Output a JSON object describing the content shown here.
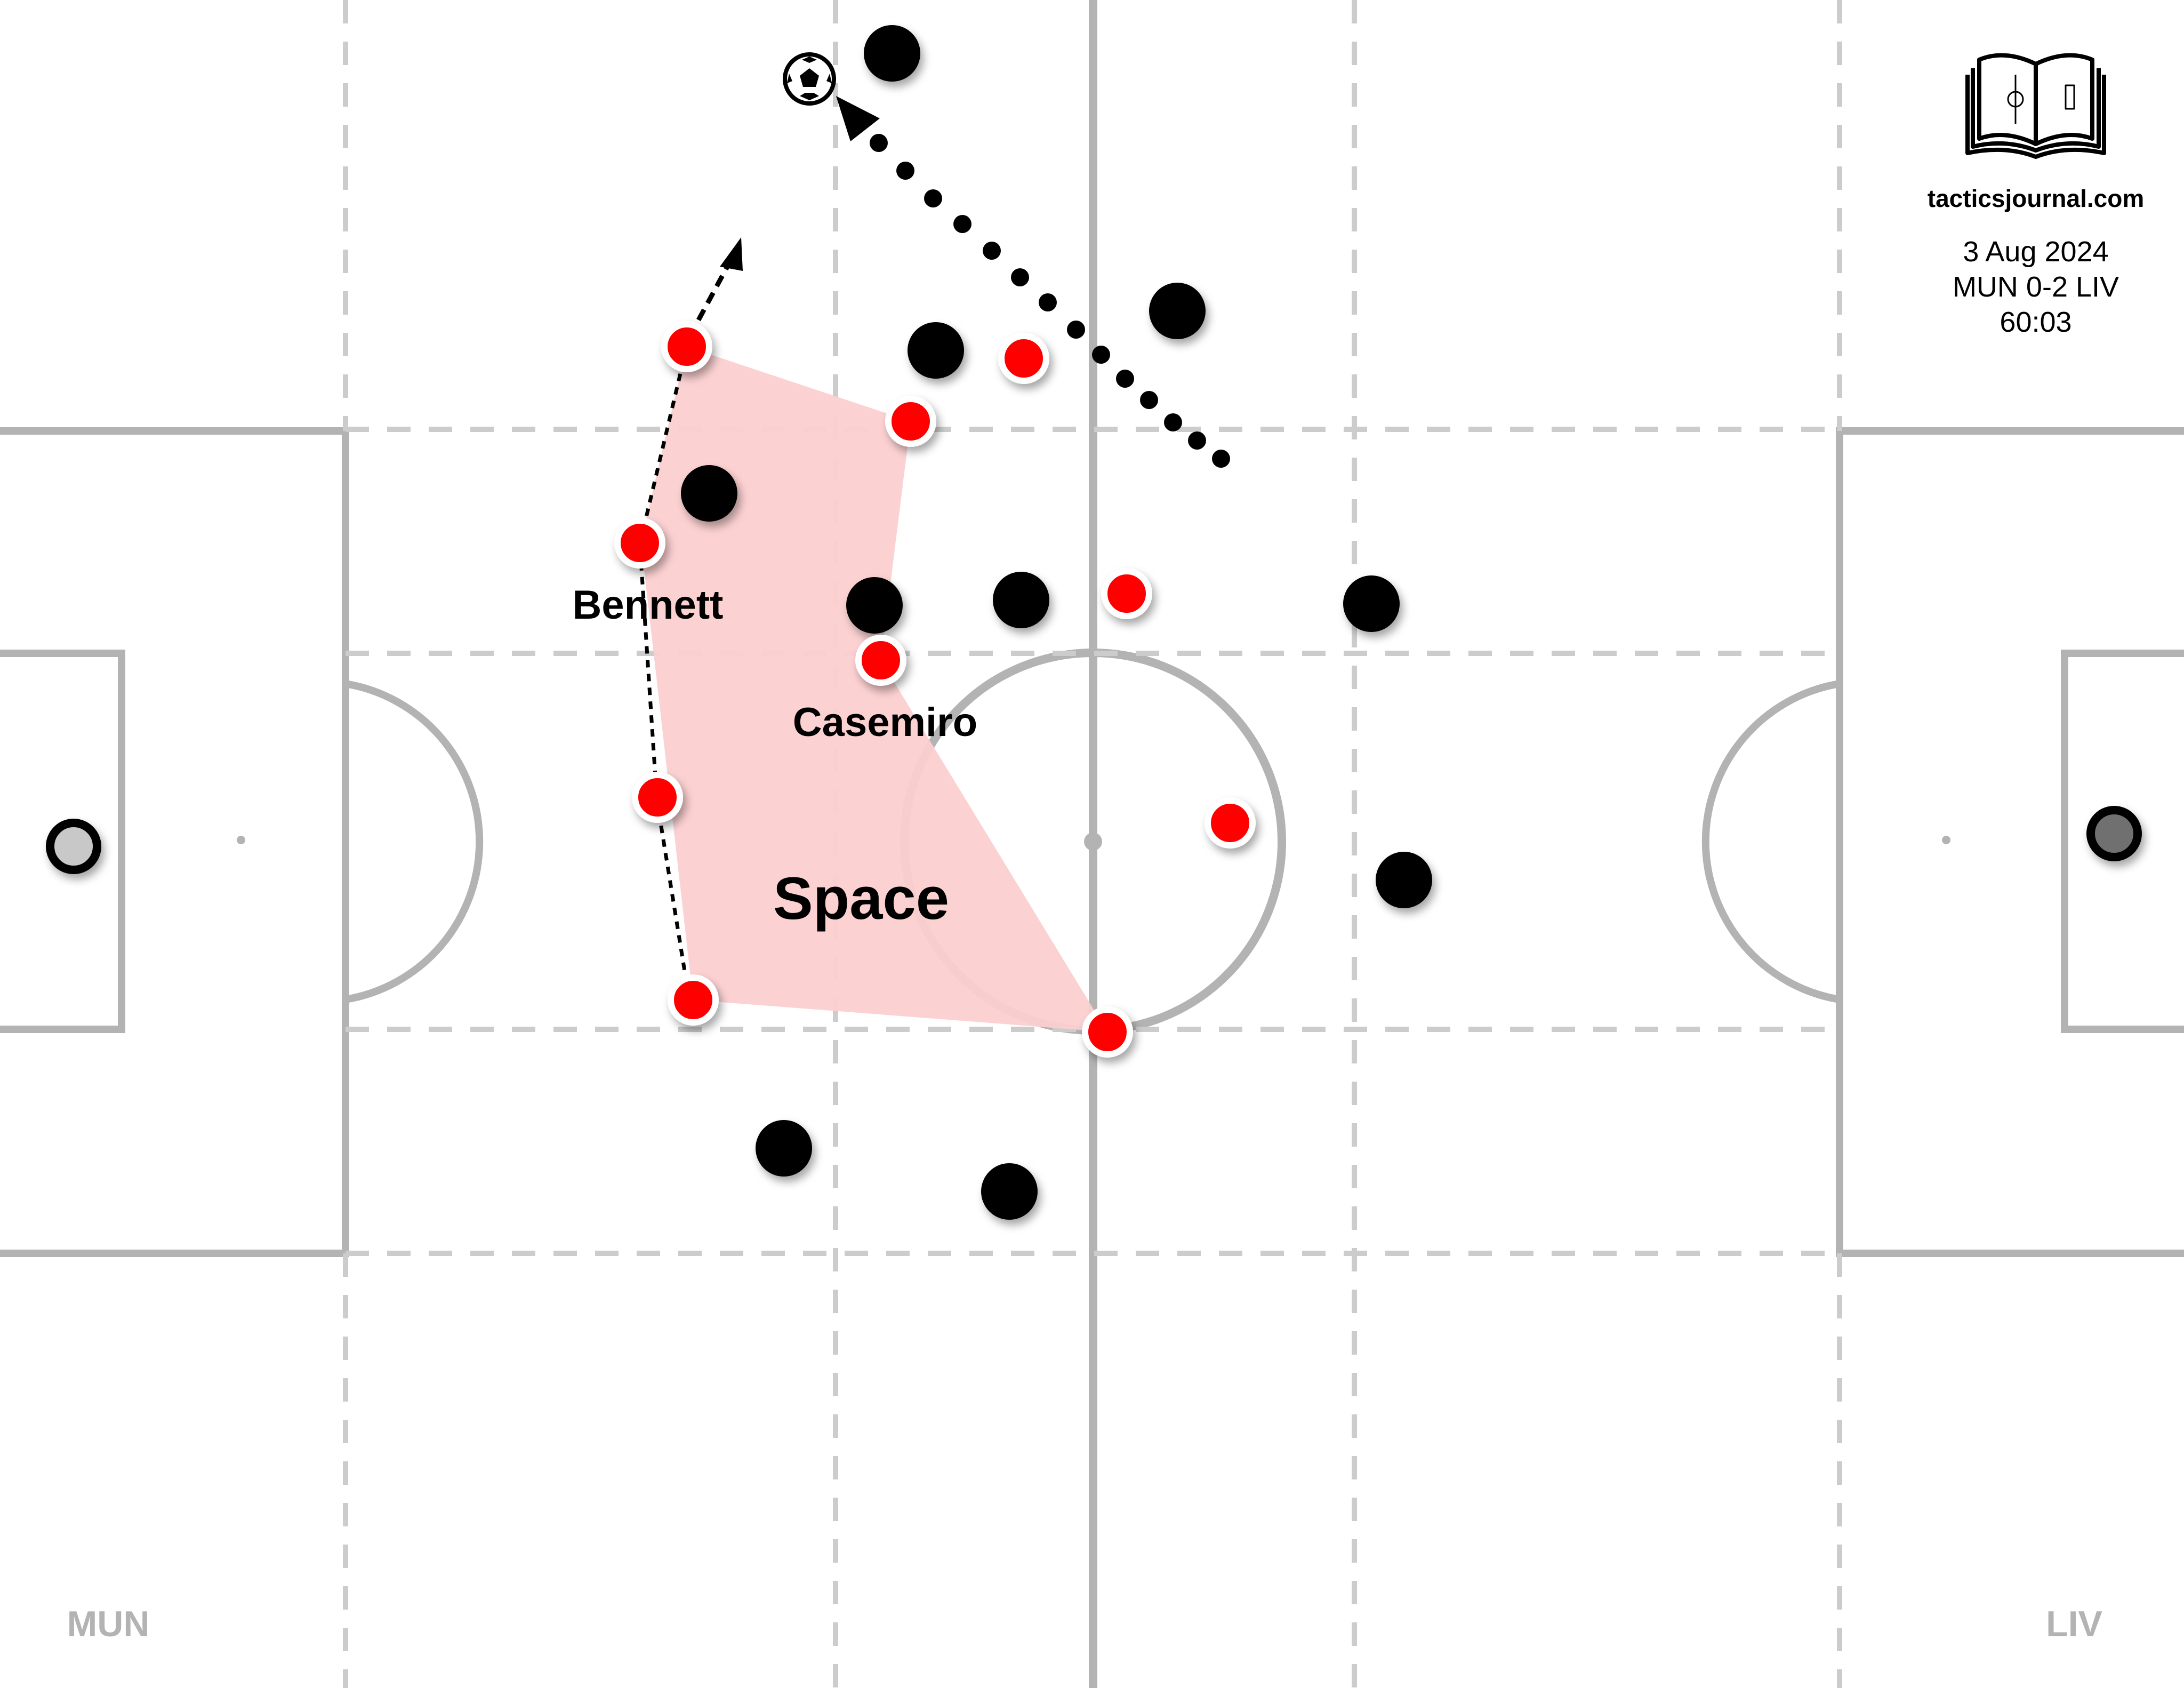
{
  "brand": {
    "site": "tacticsjournal.com",
    "logo_name": "open-book-pitch-logo"
  },
  "match": {
    "date": "3 Aug 2024",
    "score": "MUN 0-2 LIV",
    "time": "60:03"
  },
  "teams": {
    "left": "MUN",
    "right": "LIV"
  },
  "labels": {
    "bennett": "Bennett",
    "casemiro": "Casemiro",
    "space": "Space"
  },
  "colors": {
    "team_a": "#ff0000",
    "team_b": "#000000",
    "space_zone": "#fccfd0",
    "pitch_lines": "#b3b3b3",
    "keeper_left": "#c8c8c8",
    "keeper_right": "#707070"
  }
}
